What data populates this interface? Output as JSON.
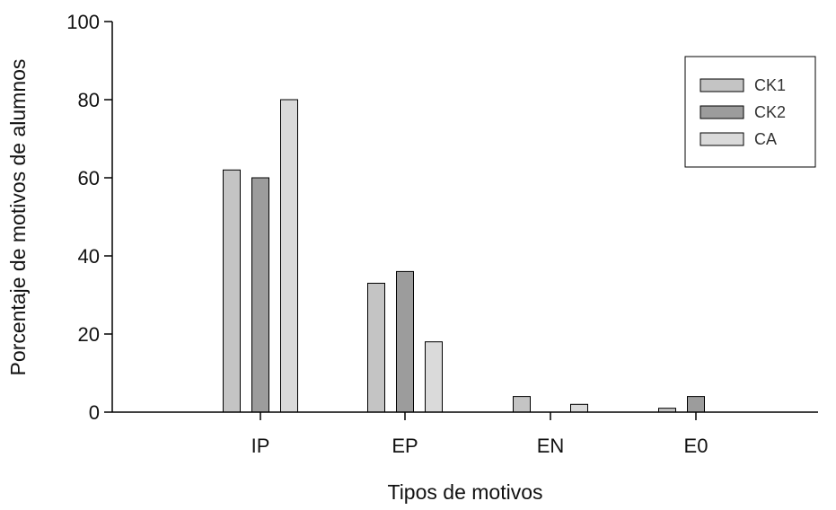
{
  "chart_data": {
    "type": "bar",
    "title": "",
    "xlabel": "Tipos de motivos",
    "ylabel": "Porcentaje de motivos de alumnos",
    "categories": [
      "IP",
      "EP",
      "EN",
      "E0"
    ],
    "series": [
      {
        "name": "CK1",
        "values": [
          62,
          33,
          4,
          1
        ],
        "color": "#c4c4c4"
      },
      {
        "name": "CK2",
        "values": [
          60,
          36,
          0,
          4
        ],
        "color": "#9c9c9c"
      },
      {
        "name": "CA",
        "values": [
          80,
          18,
          2,
          0
        ],
        "color": "#dadada"
      }
    ],
    "ylim": [
      0,
      100
    ],
    "yticks": [
      0,
      20,
      40,
      60,
      80,
      100
    ],
    "grid": false,
    "legend": "top-right"
  }
}
